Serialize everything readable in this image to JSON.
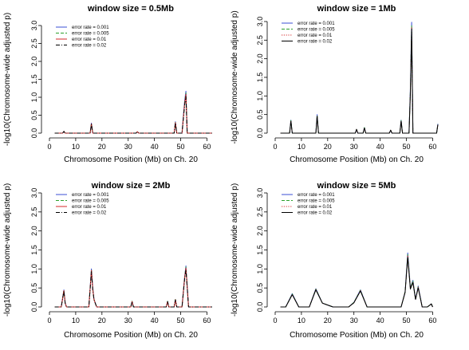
{
  "chart_data": [
    {
      "type": "line",
      "title": "window size = 0.5Mb",
      "xlabel": "Chromosome Position (Mb) on Ch. 20",
      "ylabel": "-log10(Chromosome-wide adjusted p)",
      "xlim": [
        0,
        62
      ],
      "ylim": [
        0,
        3.0
      ],
      "xticks": [
        0,
        10,
        20,
        30,
        40,
        50,
        60
      ],
      "yticks": [
        0.0,
        0.5,
        1.0,
        1.5,
        2.0,
        2.5,
        3.0
      ],
      "ytick_labels": [
        "0.0",
        "0.5",
        "1.0",
        "1.5",
        "2.0",
        "2.5",
        "3.0"
      ],
      "legend_position": "top-left",
      "series": [
        {
          "name": "error rate = 0.001",
          "color": "#3b4fd6",
          "dash": "solid",
          "x": [
            2,
            5,
            5.5,
            6,
            15.5,
            16,
            16.5,
            33,
            33.5,
            34,
            47.5,
            48,
            48.5,
            50.5,
            51,
            51.5,
            52,
            52.5,
            62
          ],
          "y": [
            0,
            0,
            0.05,
            0,
            0,
            0.28,
            0,
            0,
            0.04,
            0,
            0,
            0.32,
            0,
            0,
            0.45,
            0.9,
            1.17,
            0,
            0
          ]
        },
        {
          "name": "error rate = 0.005",
          "color": "#2ca02c",
          "dash": "dashed",
          "x": [
            2,
            5,
            5.5,
            6,
            15.5,
            16,
            16.5,
            33,
            33.5,
            34,
            47.5,
            48,
            48.5,
            50.5,
            51,
            51.5,
            52,
            52.5,
            62
          ],
          "y": [
            0,
            0,
            0.05,
            0,
            0,
            0.27,
            0,
            0,
            0.04,
            0,
            0,
            0.3,
            0,
            0,
            0.42,
            0.85,
            1.12,
            0,
            0
          ]
        },
        {
          "name": "error rate = 0.01",
          "color": "#d62728",
          "dash": "solid",
          "x": [
            2,
            5,
            5.5,
            6,
            15.5,
            16,
            16.5,
            33,
            33.5,
            34,
            47.5,
            48,
            48.5,
            50.5,
            51,
            51.5,
            52,
            52.5,
            62
          ],
          "y": [
            0,
            0,
            0.05,
            0,
            0,
            0.26,
            0,
            0,
            0.04,
            0,
            0,
            0.29,
            0,
            0,
            0.4,
            0.82,
            1.08,
            0,
            0
          ]
        },
        {
          "name": "error rate = 0.02",
          "color": "#000000",
          "dash": "dashdot",
          "x": [
            2,
            5,
            5.5,
            6,
            15.5,
            16,
            16.5,
            33,
            33.5,
            34,
            47.5,
            48,
            48.5,
            50.5,
            51,
            51.5,
            52,
            52.5,
            62
          ],
          "y": [
            0,
            0,
            0.05,
            0,
            0,
            0.25,
            0,
            0,
            0.04,
            0,
            0,
            0.28,
            0,
            0,
            0.38,
            0.78,
            1.02,
            0,
            0
          ]
        }
      ]
    },
    {
      "type": "line",
      "title": "window size = 1Mb",
      "xlabel": "Chromosome Position (Mb) on Ch. 20",
      "ylabel": "-log10(Chromosome-wide adjusted p)",
      "xlim": [
        0,
        62
      ],
      "ylim": [
        0,
        3.0
      ],
      "xticks": [
        0,
        10,
        20,
        30,
        40,
        50,
        60
      ],
      "yticks": [
        0.0,
        0.5,
        1.0,
        1.5,
        2.0,
        2.5,
        3.0
      ],
      "ytick_labels": [
        "0.0",
        "0.5",
        "1.0",
        "1.5",
        "2.0",
        "2.5",
        "3.0"
      ],
      "legend_position": "top-left",
      "series": [
        {
          "name": "error rate = 0.001",
          "color": "#3b4fd6",
          "dash": "solid",
          "x": [
            2,
            5.5,
            6,
            6.5,
            15.5,
            16,
            16.5,
            30.5,
            31,
            31.5,
            33.5,
            34,
            34.5,
            43.5,
            44,
            44.5,
            47.5,
            48,
            48.5,
            51,
            51.5,
            52,
            52.5,
            61.5,
            62
          ],
          "y": [
            0,
            0,
            0.35,
            0,
            0,
            0.5,
            0,
            0,
            0.1,
            0,
            0,
            0.15,
            0,
            0,
            0.08,
            0,
            0,
            0.35,
            0,
            0,
            1.2,
            2.98,
            0,
            0,
            0.25
          ]
        },
        {
          "name": "error rate = 0.005",
          "color": "#2ca02c",
          "dash": "dashed",
          "x": [
            2,
            5.5,
            6,
            6.5,
            15.5,
            16,
            16.5,
            30.5,
            31,
            31.5,
            33.5,
            34,
            34.5,
            43.5,
            44,
            44.5,
            47.5,
            48,
            48.5,
            51,
            51.5,
            52,
            52.5,
            61.5,
            62
          ],
          "y": [
            0,
            0,
            0.34,
            0,
            0,
            0.48,
            0,
            0,
            0.1,
            0,
            0,
            0.15,
            0,
            0,
            0.08,
            0,
            0,
            0.34,
            0,
            0,
            1.15,
            2.9,
            0,
            0,
            0.24
          ]
        },
        {
          "name": "error rate = 0.01",
          "color": "#d62728",
          "dash": "dotted",
          "x": [
            2,
            5.5,
            6,
            6.5,
            15.5,
            16,
            16.5,
            30.5,
            31,
            31.5,
            33.5,
            34,
            34.5,
            43.5,
            44,
            44.5,
            47.5,
            48,
            48.5,
            51,
            51.5,
            52,
            52.5,
            61.5,
            62
          ],
          "y": [
            0,
            0,
            0.33,
            0,
            0,
            0.46,
            0,
            0,
            0.1,
            0,
            0,
            0.14,
            0,
            0,
            0.08,
            0,
            0,
            0.33,
            0,
            0,
            1.1,
            2.85,
            0,
            0,
            0.24
          ]
        },
        {
          "name": "error rate = 0.02",
          "color": "#000000",
          "dash": "solid",
          "x": [
            2,
            5.5,
            6,
            6.5,
            15.5,
            16,
            16.5,
            30.5,
            31,
            31.5,
            33.5,
            34,
            34.5,
            43.5,
            44,
            44.5,
            47.5,
            48,
            48.5,
            51,
            51.5,
            52,
            52.5,
            61.5,
            62
          ],
          "y": [
            0,
            0,
            0.32,
            0,
            0,
            0.45,
            0,
            0,
            0.1,
            0,
            0,
            0.14,
            0,
            0,
            0.08,
            0,
            0,
            0.32,
            0,
            0,
            1.05,
            2.8,
            0,
            0,
            0.23
          ]
        }
      ]
    },
    {
      "type": "line",
      "title": "window size = 2Mb",
      "xlabel": "Chromosome Position (Mb) on Ch. 20",
      "ylabel": "-log10(Chromosome-wide adjusted p)",
      "xlim": [
        0,
        62
      ],
      "ylim": [
        0,
        3.0
      ],
      "xticks": [
        0,
        10,
        20,
        30,
        40,
        50,
        60
      ],
      "yticks": [
        0.0,
        0.5,
        1.0,
        1.5,
        2.0,
        2.5,
        3.0
      ],
      "ytick_labels": [
        "0.0",
        "0.5",
        "1.0",
        "1.5",
        "2.0",
        "2.5",
        "3.0"
      ],
      "legend_position": "top-left",
      "series": [
        {
          "name": "error rate = 0.001",
          "color": "#3b4fd6",
          "dash": "solid",
          "x": [
            2,
            4.5,
            5.5,
            6,
            6.5,
            15,
            16,
            16.5,
            17,
            18,
            31,
            31.5,
            32,
            44.5,
            45,
            45.5,
            47.5,
            48,
            48.5,
            50.5,
            51.5,
            52,
            53,
            62
          ],
          "y": [
            0,
            0,
            0.45,
            0.1,
            0,
            0,
            1.0,
            0.5,
            0.2,
            0,
            0,
            0.15,
            0,
            0,
            0.15,
            0,
            0,
            0.2,
            0,
            0,
            0.8,
            1.08,
            0,
            0
          ]
        },
        {
          "name": "error rate = 0.005",
          "color": "#2ca02c",
          "dash": "dashed",
          "x": [
            2,
            4.5,
            5.5,
            6,
            6.5,
            15,
            16,
            16.5,
            17,
            18,
            31,
            31.5,
            32,
            44.5,
            45,
            45.5,
            47.5,
            48,
            48.5,
            50.5,
            51.5,
            52,
            53,
            62
          ],
          "y": [
            0,
            0,
            0.44,
            0.1,
            0,
            0,
            0.98,
            0.48,
            0.2,
            0,
            0,
            0.15,
            0,
            0,
            0.15,
            0,
            0,
            0.2,
            0,
            0,
            0.78,
            1.05,
            0,
            0
          ]
        },
        {
          "name": "error rate = 0.01",
          "color": "#d62728",
          "dash": "solid",
          "x": [
            2,
            4.5,
            5.5,
            6,
            6.5,
            15,
            16,
            16.5,
            17,
            18,
            31,
            31.5,
            32,
            44.5,
            45,
            45.5,
            47.5,
            48,
            48.5,
            50.5,
            51.5,
            52,
            53,
            62
          ],
          "y": [
            0,
            0,
            0.43,
            0.1,
            0,
            0,
            0.96,
            0.47,
            0.19,
            0,
            0,
            0.14,
            0,
            0,
            0.14,
            0,
            0,
            0.19,
            0,
            0,
            0.76,
            1.02,
            0,
            0
          ]
        },
        {
          "name": "error rate = 0.02",
          "color": "#000000",
          "dash": "dashdot",
          "x": [
            2,
            4.5,
            5.5,
            6,
            6.5,
            15,
            16,
            16.5,
            17,
            18,
            31,
            31.5,
            32,
            44.5,
            45,
            45.5,
            47.5,
            48,
            48.5,
            50.5,
            51.5,
            52,
            53,
            62
          ],
          "y": [
            0,
            0,
            0.42,
            0.1,
            0,
            0,
            0.93,
            0.45,
            0.18,
            0,
            0,
            0.14,
            0,
            0,
            0.14,
            0,
            0,
            0.18,
            0,
            0,
            0.74,
            0.98,
            0,
            0
          ]
        }
      ]
    },
    {
      "type": "line",
      "title": "window size = 5Mb",
      "xlabel": "Chromosome Position (Mb) on Ch. 20",
      "ylabel": "-log10(Chromosome-wide adjusted p)",
      "xlim": [
        0,
        62
      ],
      "ylim": [
        0,
        3.0
      ],
      "xticks": [
        0,
        10,
        20,
        30,
        40,
        50,
        60
      ],
      "yticks": [
        0.0,
        0.5,
        1.0,
        1.5,
        2.0,
        2.5,
        3.0
      ],
      "ytick_labels": [
        "0.0",
        "0.5",
        "1.0",
        "1.5",
        "2.0",
        "2.5",
        "3.0"
      ],
      "legend_position": "top-left",
      "series": [
        {
          "name": "error rate = 0.001",
          "color": "#3b4fd6",
          "dash": "solid",
          "x": [
            2,
            4,
            6.5,
            9,
            13,
            15.5,
            18,
            20,
            22,
            28,
            30,
            32.5,
            35,
            48,
            49.5,
            50.5,
            51.5,
            52.5,
            53.5,
            54.5,
            56,
            58,
            59.5,
            60
          ],
          "y": [
            0,
            0,
            0.35,
            0,
            0,
            0.48,
            0.1,
            0.05,
            0,
            0,
            0.12,
            0.45,
            0,
            0,
            0.4,
            1.42,
            0.5,
            0.7,
            0.2,
            0.55,
            0,
            0,
            0.08,
            0
          ]
        },
        {
          "name": "error rate = 0.005",
          "color": "#2ca02c",
          "dash": "dashed",
          "x": [
            2,
            4,
            6.5,
            9,
            13,
            15.5,
            18,
            20,
            22,
            28,
            30,
            32.5,
            35,
            48,
            49.5,
            50.5,
            51.5,
            52.5,
            53.5,
            54.5,
            56,
            58,
            59.5,
            60
          ],
          "y": [
            0,
            0,
            0.34,
            0,
            0,
            0.47,
            0.1,
            0.05,
            0,
            0,
            0.12,
            0.44,
            0,
            0,
            0.4,
            1.38,
            0.5,
            0.68,
            0.2,
            0.53,
            0,
            0,
            0.08,
            0
          ]
        },
        {
          "name": "error rate = 0.01",
          "color": "#d62728",
          "dash": "dotted",
          "x": [
            2,
            4,
            6.5,
            9,
            13,
            15.5,
            18,
            20,
            22,
            28,
            30,
            32.5,
            35,
            48,
            49.5,
            50.5,
            51.5,
            52.5,
            53.5,
            54.5,
            56,
            58,
            59.5,
            60
          ],
          "y": [
            0,
            0,
            0.33,
            0,
            0,
            0.46,
            0.1,
            0.05,
            0,
            0,
            0.11,
            0.43,
            0,
            0,
            0.39,
            1.35,
            0.48,
            0.66,
            0.2,
            0.52,
            0,
            0,
            0.08,
            0
          ]
        },
        {
          "name": "error rate = 0.02",
          "color": "#000000",
          "dash": "solid",
          "x": [
            2,
            4,
            6.5,
            9,
            13,
            15.5,
            18,
            20,
            22,
            28,
            30,
            32.5,
            35,
            48,
            49.5,
            50.5,
            51.5,
            52.5,
            53.5,
            54.5,
            56,
            58,
            59.5,
            60
          ],
          "y": [
            0,
            0,
            0.32,
            0,
            0,
            0.45,
            0.1,
            0.05,
            0,
            0,
            0.11,
            0.42,
            0,
            0,
            0.38,
            1.3,
            0.47,
            0.64,
            0.2,
            0.5,
            0,
            0,
            0.08,
            0
          ]
        }
      ]
    }
  ]
}
